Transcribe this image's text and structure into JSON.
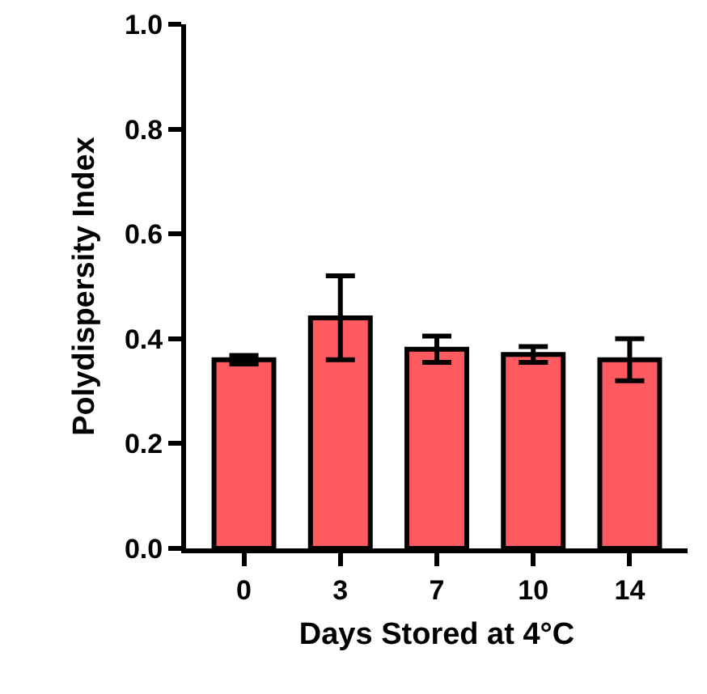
{
  "chart_data": {
    "type": "bar",
    "xlabel": "Days Stored at 4°C",
    "ylabel": "Polydispersity Index",
    "categories": [
      "0",
      "3",
      "7",
      "10",
      "14"
    ],
    "values": [
      0.36,
      0.44,
      0.38,
      0.37,
      0.36
    ],
    "errors": [
      0.008,
      0.08,
      0.025,
      0.015,
      0.04
    ],
    "color": "#fe5a5f",
    "ylim": [
      0,
      1.0
    ],
    "yticks": [
      {
        "value": 0,
        "label": "0.0"
      },
      {
        "value": 0.2,
        "label": "0.2"
      },
      {
        "value": 0.4,
        "label": "0.4"
      },
      {
        "value": 0.6,
        "label": "0.6"
      },
      {
        "value": 0.8,
        "label": "0.8"
      },
      {
        "value": 1.0,
        "label": "1.0"
      }
    ],
    "grid": false,
    "legend": false
  }
}
